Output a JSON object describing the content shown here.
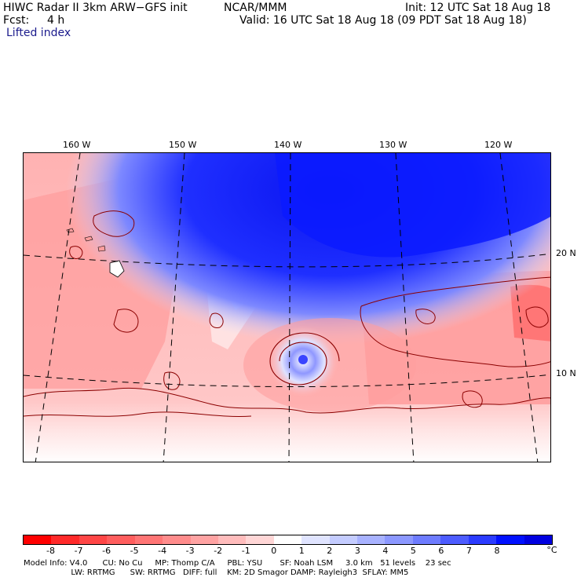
{
  "header": {
    "model": "HIWC Radar II 3km ARW−GFS init",
    "org": "NCAR/MMM",
    "init": "Init: 12 UTC Sat 18 Aug 18",
    "fcst_label": "Fcst:",
    "fcst_value": "4 h",
    "valid": "Valid: 16 UTC Sat 18 Aug 18 (09 PDT Sat 18 Aug 18)",
    "field": "Lifted index"
  },
  "map": {
    "lon_labels": [
      "160 W",
      "150 W",
      "140 W",
      "130 W",
      "120 W"
    ],
    "lat_labels": [
      "20 N",
      "10 N"
    ],
    "features": [
      "hawaii-islands",
      "hurricane-eye",
      "lifted-index-contours"
    ]
  },
  "colorbar": {
    "unit": "°C",
    "ticks": [
      "-8",
      "-7",
      "-6",
      "-5",
      "-4",
      "-3",
      "-2",
      "-1",
      "0",
      "1",
      "2",
      "3",
      "4",
      "5",
      "6",
      "7",
      "8"
    ],
    "colors": [
      "#ff0000",
      "#ff2a2a",
      "#ff4646",
      "#ff5e5e",
      "#ff7575",
      "#ff8c8c",
      "#ffa3a3",
      "#ffbcbc",
      "#ffd6d6",
      "#ffffff",
      "#e0e4ff",
      "#c4ccff",
      "#a8b2ff",
      "#8c98ff",
      "#6e7cff",
      "#4d5cff",
      "#2b3bff",
      "#0010ff",
      "#0000e0"
    ]
  },
  "footer": {
    "line1": "Model Info: V4.0      CU: No Cu     MP: Thomp C/A     PBL: YSU       SF: Noah LSM     3.0 km   51 levels    23 sec",
    "line2": "                   LW: RRTMG      SW: RRTMG   DIFF: full    KM: 2D Smagor DAMP: Rayleigh3  SFLAY: MM5"
  }
}
